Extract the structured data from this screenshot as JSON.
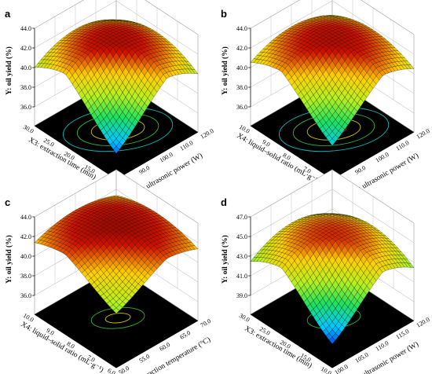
{
  "chart_data": [
    {
      "type": "surface",
      "panel": "a",
      "zlabel": "Y: oil yield (%)",
      "zticks": [
        "36.0",
        "38.0",
        "40.0",
        "42.0",
        "44.0"
      ],
      "zlim": [
        36.0,
        44.0
      ],
      "xlabel": "X1: ultrasonic power (W)",
      "xticks": [
        "80.0",
        "90.0",
        "100.0",
        "110.0",
        "120.0"
      ],
      "xlim": [
        80.0,
        120.0
      ],
      "ylabel": "X3: extraction time (min)",
      "yticks": [
        "10.0",
        "15.0",
        "20.0",
        "25.0",
        "30.0"
      ],
      "ylim": [
        10.0,
        30.0
      ],
      "surface": {
        "center_value": 43.0,
        "min_value": 36.7,
        "edge_values": [
          40.0,
          39.9,
          40.7,
          39.4
        ]
      },
      "contour_colors": [
        "#d01010",
        "#d0c000",
        "#30b030",
        "#00c0c0"
      ]
    },
    {
      "type": "surface",
      "panel": "b",
      "zlabel": "Y: oil yield (%)",
      "zticks": [
        "36.0",
        "38.0",
        "40.0",
        "42.0",
        "44.0"
      ],
      "zlim": [
        36.0,
        44.0
      ],
      "xlabel": "X1: ultrasonic power (W)",
      "xticks": [
        "80.0",
        "90.0",
        "100.0",
        "110.0",
        "120.0"
      ],
      "xlim": [
        80.0,
        120.0
      ],
      "ylabel": "X4: liquid–solid ratio (mL·g⁻¹)",
      "yticks": [
        "6.0",
        "7.0",
        "8.0",
        "9.0",
        "10.0"
      ],
      "ylim": [
        6.0,
        10.0
      ],
      "surface": {
        "center_value": 43.0,
        "min_value": 37.5,
        "edge_values": [
          40.5,
          40.4,
          41.0,
          40.2
        ]
      },
      "contour_colors": [
        "#d01010",
        "#d0c000",
        "#30b030",
        "#00c0c0"
      ]
    },
    {
      "type": "surface",
      "panel": "c",
      "zlabel": "Y: oil yield (%)",
      "zticks": [
        "36.0",
        "38.0",
        "40.0",
        "42.0",
        "44.0"
      ],
      "zlim": [
        36.0,
        44.0
      ],
      "xlabel": "X2: extraction temperature (°C)",
      "xticks": [
        "50.0",
        "55.0",
        "60.0",
        "65.0",
        "70.0"
      ],
      "xlim": [
        50.0,
        70.0
      ],
      "ylabel": "X4: liquid–solid ratio (mL·g⁻¹)",
      "yticks": [
        "6.0",
        "7.0",
        "8.0",
        "9.0",
        "10.0"
      ],
      "ylim": [
        6.0,
        10.0
      ],
      "surface": {
        "center_value": 43.2,
        "min_value": 39.6,
        "edge_values": [
          41.2,
          41.5,
          41.8,
          41.0
        ]
      },
      "contour_colors": [
        "#d0c000",
        "#30b030"
      ]
    },
    {
      "type": "surface",
      "panel": "d",
      "zlabel": "Y: oil yield (%)",
      "zticks": [
        "39.0",
        "41.0",
        "43.0",
        "45.0",
        "47.0"
      ],
      "zlim": [
        39.0,
        47.0
      ],
      "xlabel": "X1: ultrasonic power (W)",
      "xticks": [
        "100.0",
        "105.0",
        "110.0",
        "115.0",
        "120.0"
      ],
      "xlim": [
        100.0,
        120.0
      ],
      "ylabel": "X3: extraction time (min)",
      "yticks": [
        "10.0",
        "15.0",
        "20.0",
        "25.0",
        "30.0"
      ],
      "ylim": [
        10.0,
        30.0
      ],
      "surface": {
        "center_value": 45.5,
        "min_value": 39.5,
        "edge_values": [
          42.5,
          42.3,
          43.0,
          42.0
        ]
      },
      "contour_colors": [
        "#d0c000",
        "#30b030"
      ]
    }
  ],
  "colormap": [
    "#0000d8",
    "#00c8ff",
    "#20e060",
    "#b8f020",
    "#ffd000",
    "#d01000",
    "#600000"
  ]
}
